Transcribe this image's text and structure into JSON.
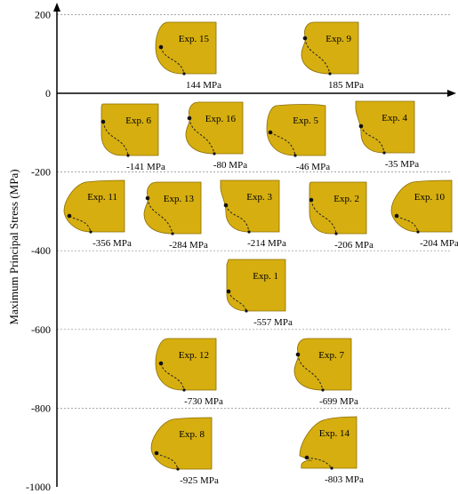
{
  "chart_data": {
    "type": "scatter",
    "ylabel": "Maximum Principal Stress (MPa)",
    "ylim": [
      -1000,
      200
    ],
    "yticks": [
      200,
      0,
      -200,
      -400,
      -600,
      -800,
      -1000
    ],
    "grid": true,
    "points": [
      {
        "label": "Exp. 15",
        "value": 144,
        "value_label": "144 MPa"
      },
      {
        "label": "Exp. 9",
        "value": 185,
        "value_label": "185 MPa"
      },
      {
        "label": "Exp. 6",
        "value": -141,
        "value_label": "-141 MPa"
      },
      {
        "label": "Exp. 16",
        "value": -80,
        "value_label": "-80 MPa"
      },
      {
        "label": "Exp. 5",
        "value": -46,
        "value_label": "-46 MPa"
      },
      {
        "label": "Exp. 4",
        "value": -35,
        "value_label": "-35 MPa"
      },
      {
        "label": "Exp. 11",
        "value": -356,
        "value_label": "-356 MPa"
      },
      {
        "label": "Exp. 13",
        "value": -284,
        "value_label": "-284 MPa"
      },
      {
        "label": "Exp. 3",
        "value": -214,
        "value_label": "-214 MPa"
      },
      {
        "label": "Exp. 2",
        "value": -206,
        "value_label": "-206 MPa"
      },
      {
        "label": "Exp. 10",
        "value": -204,
        "value_label": "-204 MPa"
      },
      {
        "label": "Exp. 1",
        "value": -557,
        "value_label": "-557 MPa"
      },
      {
        "label": "Exp. 12",
        "value": -730,
        "value_label": "-730 MPa"
      },
      {
        "label": "Exp. 7",
        "value": -699,
        "value_label": "-699 MPa"
      },
      {
        "label": "Exp. 8",
        "value": -925,
        "value_label": "-925 MPa"
      },
      {
        "label": "Exp. 14",
        "value": -803,
        "value_label": "-803 MPa"
      }
    ]
  }
}
